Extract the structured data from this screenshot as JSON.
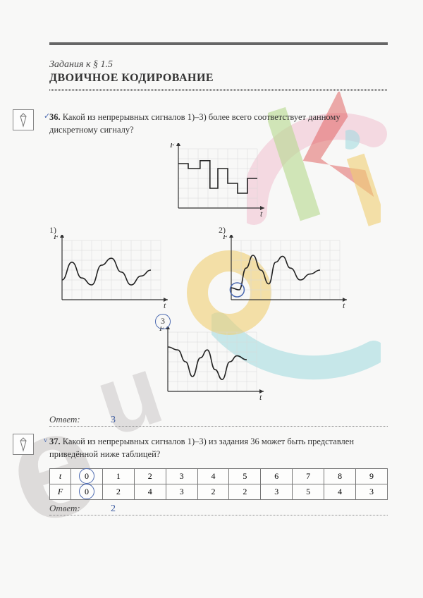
{
  "header": {
    "subtitle": "Задания к § 1.5",
    "title": "ДВОИЧНОЕ КОДИРОВАНИЕ"
  },
  "task36": {
    "num": "36.",
    "text": "Какой из непрерывных сигналов 1)–3) более всего соответствует данному дискретному сигналу?",
    "labels": {
      "F": "F",
      "t": "t",
      "c1": "1)",
      "c2": "2)",
      "c3": "3"
    },
    "answer_label": "Ответ:",
    "answer_value": "3",
    "grid": {
      "cols": 10,
      "rows": 6,
      "cell": 14,
      "color": "#d8d8d8"
    },
    "axis_color": "#333",
    "curve_color": "#222",
    "top_chart": {
      "type": "step-discrete",
      "pts": [
        [
          0,
          4.5
        ],
        [
          1,
          4.5
        ],
        [
          1,
          4
        ],
        [
          2.2,
          4
        ],
        [
          2.2,
          4.8
        ],
        [
          3.2,
          4.8
        ],
        [
          3.2,
          2
        ],
        [
          4,
          2
        ],
        [
          4,
          4
        ],
        [
          5,
          4
        ],
        [
          5,
          2.5
        ],
        [
          6,
          2.5
        ],
        [
          6,
          1.5
        ],
        [
          7,
          1.5
        ],
        [
          7,
          3
        ],
        [
          8,
          3
        ]
      ]
    },
    "chart1": {
      "type": "line",
      "pts": [
        [
          0,
          2
        ],
        [
          1,
          3.8
        ],
        [
          2,
          2.2
        ],
        [
          3,
          1.5
        ],
        [
          4,
          3.5
        ],
        [
          5,
          4.2
        ],
        [
          6,
          2.8
        ],
        [
          7,
          1.5
        ],
        [
          8,
          2.4
        ],
        [
          9,
          3
        ]
      ]
    },
    "chart2": {
      "type": "line",
      "pts": [
        [
          0,
          1.2
        ],
        [
          0.8,
          1
        ],
        [
          1.5,
          3.2
        ],
        [
          2.2,
          4.5
        ],
        [
          3,
          3
        ],
        [
          3.8,
          1.6
        ],
        [
          4.5,
          3.8
        ],
        [
          5.2,
          4.4
        ],
        [
          6,
          3.2
        ],
        [
          7,
          2
        ],
        [
          8,
          2.6
        ],
        [
          9,
          3
        ]
      ]
    },
    "chart3": {
      "type": "line",
      "pts": [
        [
          0,
          4.5
        ],
        [
          1,
          4.2
        ],
        [
          1.8,
          3
        ],
        [
          2.5,
          1.5
        ],
        [
          3.3,
          3.4
        ],
        [
          4,
          4.2
        ],
        [
          4.8,
          2.2
        ],
        [
          5.5,
          1.2
        ],
        [
          6.3,
          3
        ],
        [
          7,
          3.6
        ],
        [
          8,
          3.2
        ]
      ]
    }
  },
  "task37": {
    "num": "37.",
    "text": "Какой из непрерывных сигналов 1)–3) из задания 36 может быть представлен приведённой ниже таблицей?",
    "answer_label": "Ответ:",
    "answer_value": "2",
    "table": {
      "row_heads": [
        "t",
        "F"
      ],
      "t": [
        "0",
        "1",
        "2",
        "3",
        "4",
        "5",
        "6",
        "7",
        "8",
        "9"
      ],
      "F": [
        "0",
        "2",
        "4",
        "3",
        "2",
        "2",
        "3",
        "5",
        "4",
        "3"
      ],
      "circled_t_idx": 0,
      "circled_F_idx": 0
    }
  },
  "watermark": {
    "pink": "#f2c6d4",
    "cyan": "#a5dce1",
    "yellow": "#f0cf73",
    "grey": "#d6d2d2",
    "green": "#b6d98e",
    "red": "#e15c5c"
  }
}
